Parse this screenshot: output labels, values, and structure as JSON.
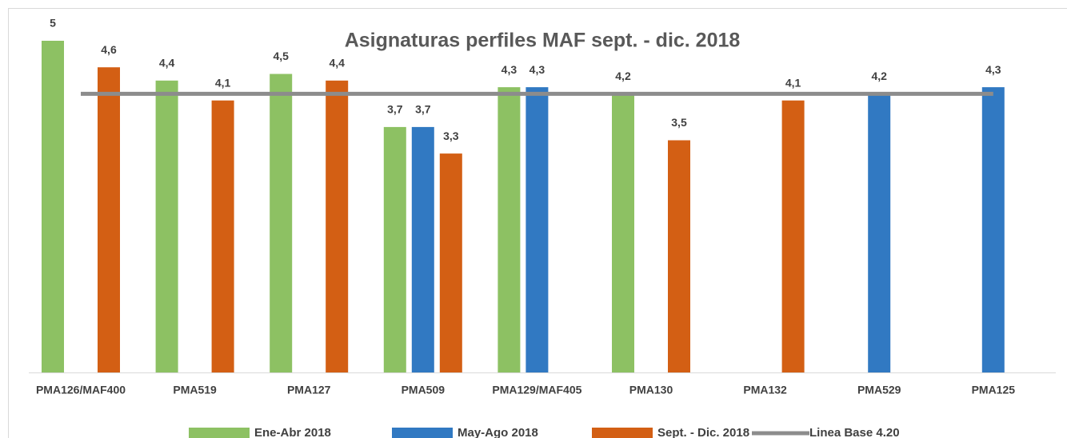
{
  "chart_data": {
    "type": "bar",
    "title": "Asignaturas perfiles MAF sept. - dic. 2018",
    "categories": [
      "PMA126/MAF400",
      "PMA519",
      "PMA127",
      "PMA509",
      "PMA129/MAF405",
      "PMA130",
      "PMA132",
      "PMA529",
      "PMA125"
    ],
    "series": [
      {
        "name": "Ene-Abr 2018",
        "color": "#8dc163",
        "values": [
          5,
          4.4,
          4.5,
          3.7,
          4.3,
          4.2,
          null,
          null,
          null
        ],
        "value_labels": [
          "5",
          "4,4",
          "4,5",
          "3,7",
          "4,3",
          "4,2",
          null,
          null,
          null
        ]
      },
      {
        "name": "May-Ago 2018",
        "color": "#3179c2",
        "values": [
          null,
          null,
          null,
          3.7,
          4.3,
          null,
          null,
          4.2,
          4.3
        ],
        "value_labels": [
          null,
          null,
          null,
          "3,7",
          "4,3",
          null,
          null,
          "4,2",
          "4,3"
        ]
      },
      {
        "name": "Sept. - Dic. 2018",
        "color": "#d35f14",
        "values": [
          4.6,
          4.1,
          4.4,
          3.3,
          null,
          3.5,
          4.1,
          null,
          null
        ],
        "value_labels": [
          "4,6",
          "4,1",
          "4,4",
          "3,3",
          null,
          "3,5",
          "4,1",
          null,
          null
        ]
      },
      {
        "name": "Linea Base 4.20",
        "color": "#8c8c8c",
        "type": "line",
        "values": [
          4.2,
          4.2,
          4.2,
          4.2,
          4.2,
          4.2,
          4.2,
          4.2,
          4.2
        ]
      }
    ],
    "legend": "bottom"
  }
}
